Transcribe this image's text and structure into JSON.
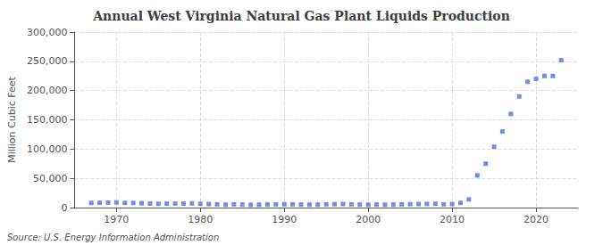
{
  "chart_data": {
    "type": "scatter",
    "title": "Annual West Virginia Natural Gas Plant Liquids Production",
    "ylabel": "Million Cubic Feet",
    "annotations": [
      "Source: U.S. Energy Information Administration"
    ],
    "x": [
      1967,
      1968,
      1969,
      1970,
      1971,
      1972,
      1973,
      1974,
      1975,
      1976,
      1977,
      1978,
      1979,
      1980,
      1981,
      1982,
      1983,
      1984,
      1985,
      1986,
      1987,
      1988,
      1989,
      1990,
      1991,
      1992,
      1993,
      1994,
      1995,
      1996,
      1997,
      1998,
      1999,
      2000,
      2001,
      2002,
      2003,
      2004,
      2005,
      2006,
      2007,
      2008,
      2009,
      2010,
      2011,
      2012,
      2013,
      2014,
      2015,
      2016,
      2017,
      2018,
      2019,
      2020,
      2021,
      2022,
      2023
    ],
    "values": [
      8000,
      8200,
      8500,
      8800,
      8000,
      7800,
      7500,
      7000,
      6500,
      6800,
      7000,
      6800,
      7200,
      6500,
      6000,
      5500,
      5000,
      5500,
      5200,
      4800,
      5000,
      5200,
      5500,
      5800,
      5500,
      5200,
      5000,
      5200,
      5500,
      5800,
      6000,
      5500,
      5200,
      5000,
      5200,
      5000,
      5200,
      5500,
      5800,
      6000,
      6200,
      6500,
      5500,
      6000,
      8000,
      14000,
      55000,
      75000,
      104000,
      130000,
      160000,
      190000,
      215000,
      220000,
      225000,
      225000,
      252000
    ],
    "xlim": [
      1965,
      2025
    ],
    "xticks": [
      1970,
      1980,
      1990,
      2000,
      2010,
      2020
    ],
    "ylim": [
      0,
      300000
    ],
    "yticks": [
      0,
      {
        "value": 50000,
        "label": "50,000"
      },
      {
        "value": 100000,
        "label": "100,000"
      },
      {
        "value": 150000,
        "label": "150,000"
      },
      {
        "value": 200000,
        "label": "200,000"
      },
      {
        "value": 250000,
        "label": "250,000"
      },
      {
        "value": 300000,
        "label": "300,000"
      }
    ],
    "grid": true,
    "marker": "square"
  }
}
